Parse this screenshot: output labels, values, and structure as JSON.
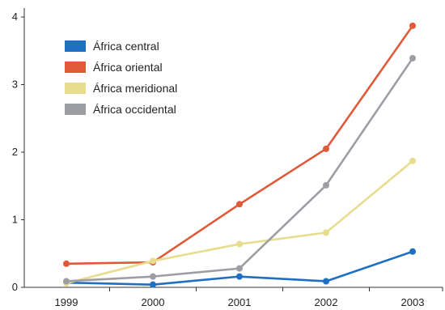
{
  "chart_data": {
    "type": "line",
    "title": "",
    "xlabel": "",
    "ylabel": "",
    "x": [
      "1999",
      "2000",
      "2001",
      "2002",
      "2003"
    ],
    "ylim": [
      0,
      4
    ],
    "yticks": [
      0,
      1,
      2,
      3,
      4
    ],
    "grid": false,
    "legend": "top-left",
    "series": [
      {
        "name": "África central",
        "color": "#1f6fc2",
        "values": [
          0.07,
          0.04,
          0.16,
          0.09,
          0.53
        ]
      },
      {
        "name": "África oriental",
        "color": "#e05a3a",
        "values": [
          0.35,
          0.37,
          1.23,
          2.05,
          3.87
        ]
      },
      {
        "name": "África meridional",
        "color": "#e8dd8e",
        "values": [
          0.06,
          0.39,
          0.64,
          0.81,
          1.87
        ]
      },
      {
        "name": "África occidental",
        "color": "#9d9ea4",
        "values": [
          0.09,
          0.16,
          0.28,
          1.51,
          3.39
        ]
      }
    ]
  }
}
